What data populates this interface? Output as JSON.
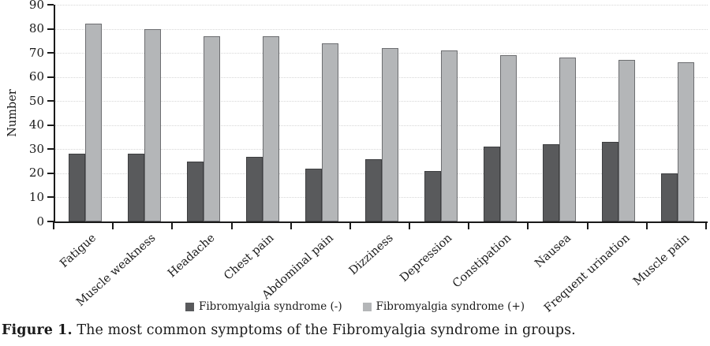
{
  "figure": {
    "caption_label": "Figure 1.",
    "caption_text": "The most common symptoms of the Fibromyalgia syndrome in groups."
  },
  "chart_data": {
    "type": "bar",
    "title": "",
    "xlabel": "",
    "ylabel": "Number",
    "ylim": [
      0,
      90
    ],
    "y_ticks": [
      0,
      10,
      20,
      30,
      40,
      50,
      60,
      70,
      80,
      90
    ],
    "grid": "horizontal-dotted",
    "legend_position": "bottom-center",
    "categories": [
      "Fatigue",
      "Muscle weakness",
      "Headache",
      "Chest pain",
      "Abdominal pain",
      "Dizziness",
      "Depression",
      "Constipation",
      "Nausea",
      "Frequent urination",
      "Muscle pain"
    ],
    "series": [
      {
        "name": "Fibromyalgia syndrome (-)",
        "color": "#595a5c",
        "border_color": "#3d3e40",
        "values": [
          28,
          28,
          25,
          27,
          22,
          26,
          21,
          31,
          32,
          33,
          20
        ]
      },
      {
        "name": "Fibromyalgia syndrome (+)",
        "color": "#b4b6b8",
        "border_color": "#6d6e71",
        "values": [
          82,
          80,
          77,
          77,
          74,
          72,
          71,
          69,
          68,
          67,
          66
        ]
      }
    ]
  },
  "colors": {
    "axis": "#1a1a1a",
    "gridline": "#d6d6d6",
    "text": "#1a1a1a",
    "background": "#ffffff"
  }
}
